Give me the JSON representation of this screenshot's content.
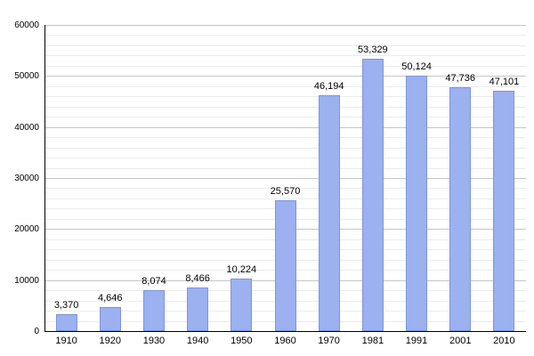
{
  "chart_data": {
    "type": "bar",
    "title": "",
    "xlabel": "",
    "ylabel": "",
    "categories": [
      "1910",
      "1920",
      "1930",
      "1940",
      "1950",
      "1960",
      "1970",
      "1981",
      "1991",
      "2001",
      "2010"
    ],
    "values": [
      3370,
      4646,
      8074,
      8466,
      10224,
      25570,
      46194,
      53329,
      50124,
      47736,
      47101
    ],
    "value_labels": [
      "3,370",
      "4,646",
      "8,074",
      "8,466",
      "10,224",
      "25,570",
      "46,194",
      "53,329",
      "50,124",
      "47,736",
      "47,101"
    ],
    "ylim": [
      0,
      60000
    ],
    "y_major_step": 10000,
    "y_minor_step": 2000,
    "y_tick_labels": [
      "0",
      "10000",
      "20000",
      "30000",
      "40000",
      "50000",
      "60000"
    ],
    "grid": true,
    "legend_position": "none",
    "bar_color": "#9bb1f0",
    "bar_border_color": "#7e95da",
    "axis_color": "#000000",
    "background_color": "#ffffff"
  }
}
